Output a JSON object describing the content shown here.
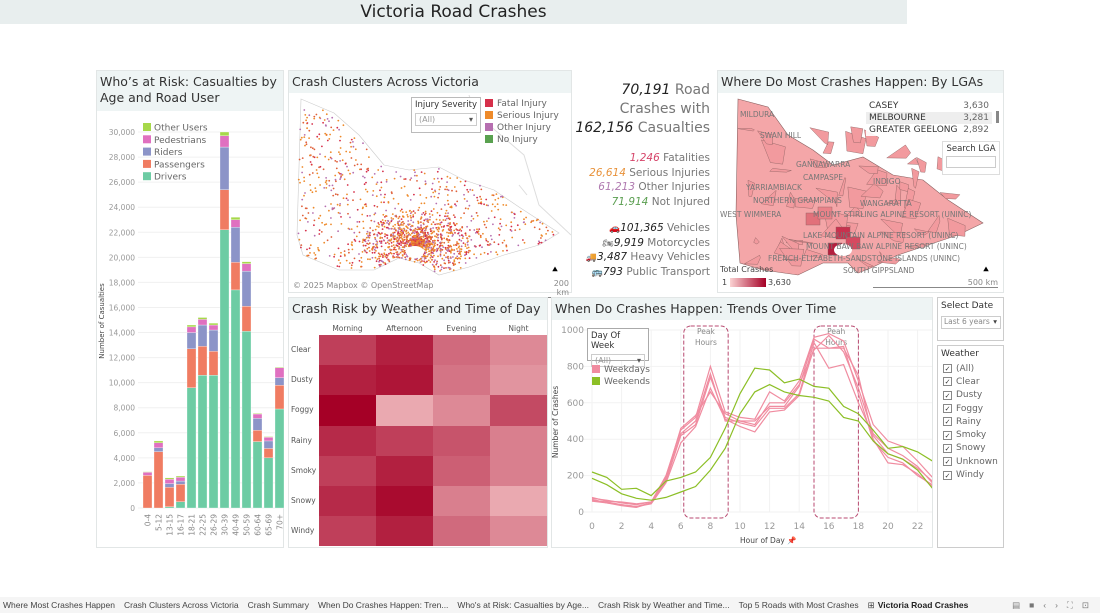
{
  "title": "Victoria Road Crashes",
  "age_panel": {
    "title": "Who’s at Risk: Casualties by Age and Road User"
  },
  "map_panel": {
    "title": "Crash Clusters Across Victoria",
    "filter_label": "Injury Severity",
    "filter_value": "(All)",
    "legend": [
      {
        "label": "Fatal Injury",
        "color": "#d6304a"
      },
      {
        "label": "Serious Injury",
        "color": "#ee8a2a"
      },
      {
        "label": "Other Injury",
        "color": "#b66fb0"
      },
      {
        "label": "No Injury",
        "color": "#59a14f"
      }
    ],
    "attribution": "© 2025 Mapbox © OpenStreetMap",
    "scale": "200 km"
  },
  "kpi": {
    "crashes": "70,191",
    "crashes_label": "Road",
    "crashes_label2": "Crashes with",
    "casualties": "162,156",
    "casualties_label": "Casualties",
    "severity": [
      {
        "value": "1,246",
        "label": "Fatalities",
        "color": "#d6456a"
      },
      {
        "value": "26,614",
        "label": "Serious Injuries",
        "color": "#e8923a"
      },
      {
        "value": "61,213",
        "label": "Other Injuries",
        "color": "#b07ab0"
      },
      {
        "value": "71,914",
        "label": "Not Injured",
        "color": "#5a9e50"
      }
    ],
    "vehicles": [
      {
        "value": "101,365",
        "label": "Vehicles",
        "icon": "car-icon",
        "glyph": "🚗"
      },
      {
        "value": "9,919",
        "label": "Motorcycles",
        "icon": "motorcycle-icon",
        "glyph": "🏍"
      },
      {
        "value": "3,487",
        "label": "Heavy Vehicles",
        "icon": "truck-icon",
        "glyph": "🚚"
      },
      {
        "value": "793",
        "label": "Public Transport",
        "icon": "bus-icon",
        "glyph": "🚌"
      }
    ]
  },
  "lga_panel": {
    "title": "Where Do Most Crashes Happen: By LGAs",
    "top": [
      {
        "name": "CASEY",
        "value": "3,630"
      },
      {
        "name": "MELBOURNE",
        "value": "3,281"
      },
      {
        "name": "GREATER GEELONG",
        "value": "2,892"
      }
    ],
    "search_label": "Search LGA",
    "search_value": "",
    "map_labels": [
      "MILDURA",
      "SWAN HILL",
      "GANNAWARRA",
      "CAMPASPE",
      "INDIGO",
      "WANGARATTA",
      "YARRIAMBIACK",
      "NORTHERN GRAMPIANS",
      "WEST WIMMERA",
      "MOUNT STIRLING ALPINE RESORT (UNINC)",
      "LAKE MOUNTAIN ALPINE RESORT (UNINC)",
      "MOUNT BAW BAW ALPINE RESORT (UNINC)",
      "FRENCH-ELIZABETH-SANDSTONE ISLANDS (UNINC)",
      "SOUTH GIPPSLAND"
    ],
    "legend_title": "Total Crashes",
    "legend_min": "1",
    "legend_max": "3,630",
    "scale": "500 km"
  },
  "heat_panel": {
    "title": "Crash Risk by Weather and Time of Day",
    "columns": [
      "Morning",
      "Afternoon",
      "Evening",
      "Night"
    ],
    "rows": [
      "Clear",
      "Dusty",
      "Foggy",
      "Rainy",
      "Smoky",
      "Snowy",
      "Windy"
    ],
    "relative_intensity": [
      [
        0.7,
        0.85,
        0.5,
        0.35
      ],
      [
        0.85,
        0.9,
        0.45,
        0.3
      ],
      [
        1.0,
        0.2,
        0.35,
        0.65
      ],
      [
        0.8,
        0.7,
        0.6,
        0.4
      ],
      [
        0.7,
        0.85,
        0.55,
        0.4
      ],
      [
        0.8,
        0.95,
        0.4,
        0.2
      ],
      [
        0.7,
        0.85,
        0.5,
        0.35
      ]
    ],
    "color_low": "#fbd3d3",
    "color_high": "#a50026"
  },
  "trend_panel": {
    "title": "When Do Crashes Happen: Trends Over Time",
    "filter_label": "Day Of Week",
    "filter_value": "(All)",
    "peak1": "Peak Hours",
    "peak2": "Peah Hours"
  },
  "date_filter": {
    "label": "Select Date",
    "value": "Last 6 years"
  },
  "weather_filter": {
    "label": "Weather",
    "options": [
      "(All)",
      "Clear",
      "Dusty",
      "Foggy",
      "Rainy",
      "Smoky",
      "Snowy",
      "Unknown",
      "Windy"
    ]
  },
  "tabs": [
    "Where Most Crashes Happen",
    "Crash Clusters Across Victoria",
    "Crash Summary",
    "When Do Crashes Happen: Tren...",
    "Who's at Risk: Casualties by Age...",
    "Crash Risk by Weather and Time...",
    "Top 5 Roads with Most Crashes",
    "Victoria Road Crashes"
  ],
  "chart_data": [
    {
      "type": "bar",
      "stacked": true,
      "categories": [
        "0-4",
        "5-12",
        "13-15",
        "16-17",
        "18-21",
        "22-25",
        "26-29",
        "30-39",
        "40-49",
        "50-59",
        "60-64",
        "65-69",
        "70+"
      ],
      "ylabel": "Number of Casualties",
      "ylim": [
        0,
        30000
      ],
      "yticks": [
        0,
        2000,
        4000,
        6000,
        8000,
        10000,
        12000,
        14000,
        16000,
        18000,
        20000,
        22000,
        24000,
        26000,
        28000,
        30000
      ],
      "legend": "top-left",
      "series": [
        {
          "name": "Drivers",
          "color": "#6dcca4",
          "values": [
            0,
            0,
            100,
            500,
            9600,
            10600,
            10600,
            22200,
            17400,
            14100,
            5300,
            4000,
            7900
          ]
        },
        {
          "name": "Passengers",
          "color": "#f07c62",
          "values": [
            2600,
            4500,
            1550,
            1400,
            3100,
            2300,
            1900,
            3200,
            2200,
            2000,
            900,
            750,
            1900
          ]
        },
        {
          "name": "Riders",
          "color": "#8c94c8",
          "values": [
            0,
            300,
            300,
            250,
            1300,
            1700,
            1700,
            3400,
            2800,
            2800,
            950,
            600,
            600
          ]
        },
        {
          "name": "Pedestrians",
          "color": "#e070c0",
          "values": [
            250,
            400,
            350,
            300,
            450,
            450,
            400,
            900,
            600,
            600,
            350,
            300,
            800
          ]
        },
        {
          "name": "Other Users",
          "color": "#a6d84a",
          "values": [
            50,
            150,
            100,
            100,
            150,
            150,
            150,
            300,
            200,
            150,
            50,
            50,
            50
          ]
        }
      ]
    },
    {
      "type": "line",
      "xlabel": "Hour of Day",
      "ylabel": "Number of Crashes",
      "xlim": [
        0,
        23
      ],
      "ylim": [
        0,
        1000
      ],
      "xticks": [
        0,
        2,
        4,
        6,
        8,
        10,
        12,
        14,
        16,
        18,
        20,
        22
      ],
      "yticks": [
        0,
        200,
        400,
        600,
        800,
        1000
      ],
      "legend": "top-left",
      "series": [
        {
          "name": "Weekdays",
          "color": "#f08ca0",
          "values": [
            80,
            60,
            55,
            45,
            55,
            200,
            450,
            520,
            800,
            550,
            520,
            510,
            660,
            610,
            720,
            960,
            980,
            940,
            720,
            480,
            390,
            360,
            280,
            190
          ]
        },
        {
          "name": "Weekdays",
          "color": "#f08ca0",
          "values": [
            65,
            55,
            40,
            30,
            50,
            170,
            420,
            480,
            740,
            520,
            490,
            470,
            570,
            570,
            650,
            930,
            790,
            810,
            600,
            420,
            320,
            290,
            240,
            170
          ]
        },
        {
          "name": "Weekdays",
          "color": "#f08ca0",
          "values": [
            70,
            50,
            40,
            30,
            45,
            160,
            380,
            470,
            680,
            510,
            470,
            440,
            550,
            560,
            640,
            900,
            900,
            910,
            650,
            390,
            300,
            270,
            200,
            150
          ]
        },
        {
          "name": "Weekdays",
          "color": "#f08ca0",
          "values": [
            60,
            50,
            35,
            25,
            50,
            190,
            460,
            530,
            660,
            540,
            500,
            500,
            580,
            580,
            690,
            950,
            900,
            900,
            750,
            400,
            270,
            260,
            210,
            140
          ]
        },
        {
          "name": "Weekdays",
          "color": "#f08ca0",
          "values": [
            75,
            65,
            50,
            40,
            55,
            180,
            430,
            500,
            760,
            500,
            500,
            480,
            600,
            600,
            700,
            890,
            970,
            880,
            680,
            430,
            350,
            310,
            250,
            160
          ]
        },
        {
          "name": "Weekends",
          "color": "#8cbf26",
          "values": [
            220,
            190,
            125,
            130,
            90,
            170,
            190,
            220,
            300,
            460,
            650,
            790,
            780,
            710,
            730,
            690,
            680,
            580,
            540,
            450,
            350,
            360,
            330,
            280
          ]
        },
        {
          "name": "Weekends",
          "color": "#8cbf26",
          "values": [
            185,
            150,
            100,
            75,
            65,
            80,
            110,
            140,
            230,
            350,
            540,
            660,
            700,
            660,
            640,
            630,
            610,
            520,
            500,
            390,
            320,
            290,
            230,
            130
          ]
        }
      ]
    }
  ]
}
